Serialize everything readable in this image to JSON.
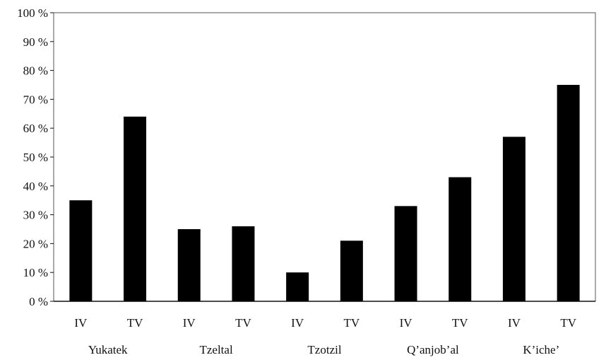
{
  "chart_data": {
    "type": "bar",
    "ylim": [
      0,
      100
    ],
    "y_ticks": [
      0,
      10,
      20,
      30,
      40,
      50,
      60,
      70,
      80,
      90,
      100
    ],
    "y_tick_labels": [
      "0 %",
      "10 %",
      "20 %",
      "30 %",
      "40 %",
      "50 %",
      "60 %",
      "70 %",
      "80 %",
      "90 %",
      "100 %"
    ],
    "categories": [
      "IV",
      "TV",
      "IV",
      "TV",
      "IV",
      "TV",
      "IV",
      "TV",
      "IV",
      "TV"
    ],
    "values": [
      35,
      64,
      25,
      26,
      10,
      21,
      33,
      43,
      57,
      75
    ],
    "groups": [
      "Yukatek",
      "Tzeltal",
      "Tzotzil",
      "Q’anjob’al",
      "K’iche’"
    ],
    "title": "",
    "xlabel": "",
    "ylabel": "",
    "grid": false,
    "legend": "none",
    "bar_color": "#000000"
  }
}
